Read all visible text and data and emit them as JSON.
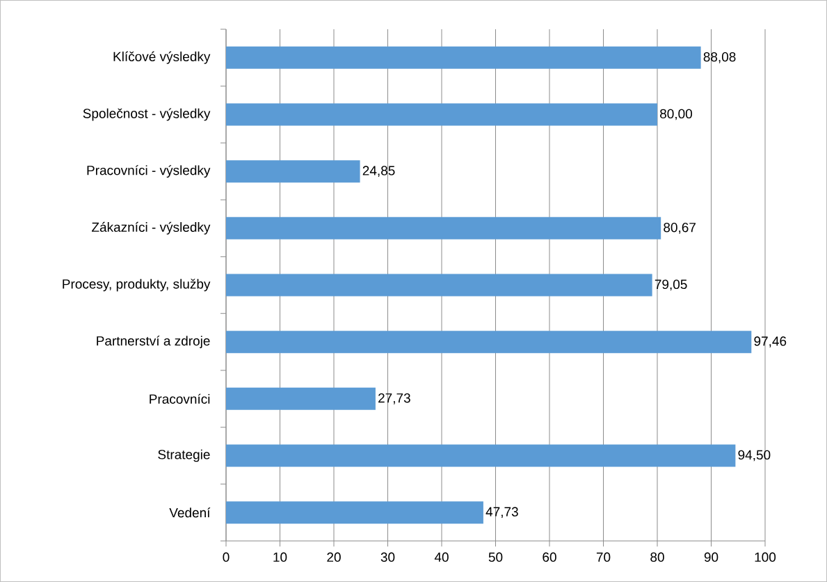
{
  "chart_data": {
    "type": "bar",
    "orientation": "horizontal",
    "categories": [
      "Klíčové výsledky",
      "Společnost - výsledky",
      "Pracovníci - výsledky",
      "Zákazníci - výsledky",
      "Procesy, produkty, služby",
      "Partnerství a zdroje",
      "Pracovníci",
      "Strategie",
      "Vedení"
    ],
    "values": [
      88.08,
      80.0,
      24.85,
      80.67,
      79.05,
      97.46,
      27.73,
      94.5,
      47.73
    ],
    "value_labels": [
      "88,08",
      "80,00",
      "24,85",
      "80,67",
      "79,05",
      "97,46",
      "27,73",
      "94,50",
      "47,73"
    ],
    "color": "#5b9bd5",
    "xlim": [
      0,
      100
    ],
    "xticks": [
      0,
      10,
      20,
      30,
      40,
      50,
      60,
      70,
      80,
      90,
      100
    ],
    "grid": "x"
  }
}
